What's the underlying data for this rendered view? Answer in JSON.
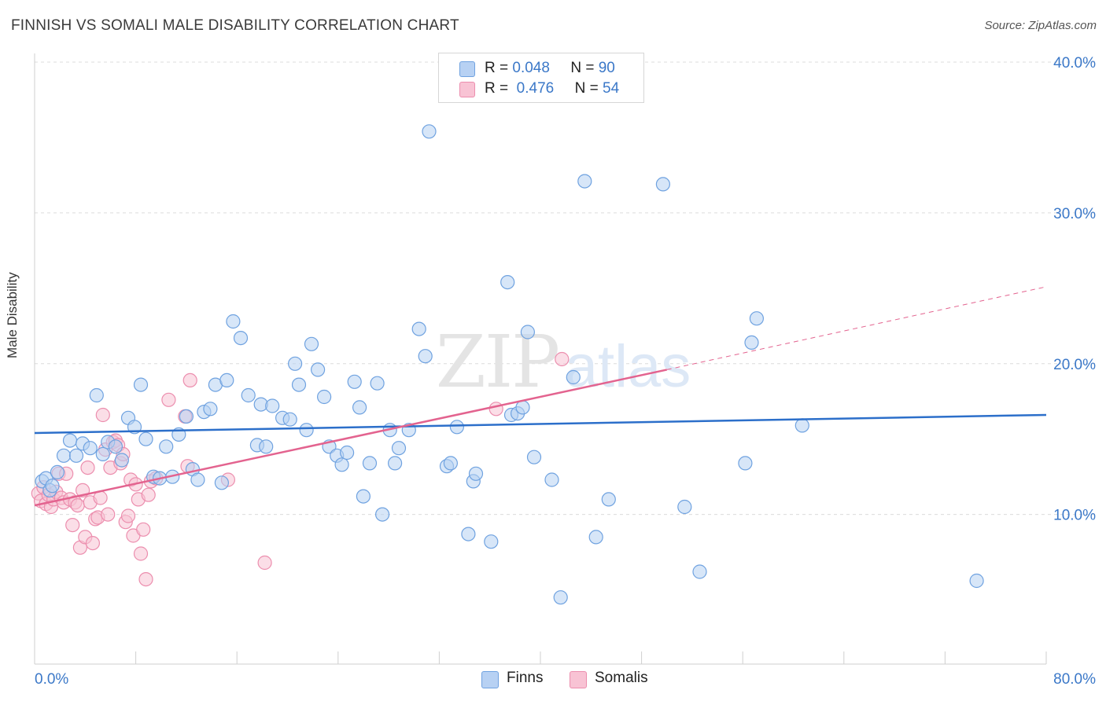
{
  "title": "FINNISH VS SOMALI MALE DISABILITY CORRELATION CHART",
  "source": "Source: ZipAtlas.com",
  "watermark": {
    "zip": "ZIP",
    "atlas": "atlas"
  },
  "legend": {
    "rows": [
      {
        "r_label": "R =",
        "r_value": "0.048",
        "n_label": "N =",
        "n_value": "90",
        "color": "#a9c8f0"
      },
      {
        "r_label": "R =",
        "r_value": "0.476",
        "n_label": "N =",
        "n_value": "54",
        "color": "#f6b7cb"
      }
    ]
  },
  "bottom_legend": [
    {
      "label": "Finns",
      "color": "#a9c8f0"
    },
    {
      "label": "Somalis",
      "color": "#f6b7cb"
    }
  ],
  "chart_data": {
    "type": "scatter",
    "title": "FINNISH VS SOMALI MALE DISABILITY CORRELATION CHART",
    "xlabel": "",
    "ylabel": "Male Disability",
    "xlim": [
      0,
      80
    ],
    "ylim": [
      0,
      40
    ],
    "x_tick_labels": [
      "0.0%",
      "80.0%"
    ],
    "y_ticks": [
      10,
      20,
      30,
      40
    ],
    "y_tick_labels": [
      "10.0%",
      "20.0%",
      "30.0%",
      "40.0%"
    ],
    "grid": "horizontal dashed",
    "legend_position": "top-center",
    "series": [
      {
        "name": "Finns",
        "color": "#6fa2e0",
        "fill": "#b7d1f3",
        "trend": {
          "x": [
            0,
            80
          ],
          "y": [
            15.4,
            16.6
          ],
          "color": "#2c6fca"
        },
        "points": [
          [
            0.6,
            12.2
          ],
          [
            0.9,
            12.4
          ],
          [
            1.2,
            11.6
          ],
          [
            1.4,
            11.9
          ],
          [
            1.8,
            12.8
          ],
          [
            2.3,
            13.9
          ],
          [
            2.8,
            14.9
          ],
          [
            3.3,
            13.9
          ],
          [
            3.8,
            14.7
          ],
          [
            4.4,
            14.4
          ],
          [
            4.9,
            17.9
          ],
          [
            5.4,
            14.0
          ],
          [
            5.8,
            14.8
          ],
          [
            6.4,
            14.5
          ],
          [
            6.9,
            13.6
          ],
          [
            7.4,
            16.4
          ],
          [
            7.9,
            15.8
          ],
          [
            8.4,
            18.6
          ],
          [
            8.8,
            15.0
          ],
          [
            9.4,
            12.5
          ],
          [
            9.9,
            12.4
          ],
          [
            10.4,
            14.5
          ],
          [
            10.9,
            12.5
          ],
          [
            11.4,
            15.3
          ],
          [
            12.0,
            16.5
          ],
          [
            12.5,
            13.0
          ],
          [
            12.9,
            12.3
          ],
          [
            13.4,
            16.8
          ],
          [
            13.9,
            17.0
          ],
          [
            14.3,
            18.6
          ],
          [
            14.8,
            12.1
          ],
          [
            15.2,
            18.9
          ],
          [
            15.7,
            22.8
          ],
          [
            16.3,
            21.7
          ],
          [
            16.9,
            17.9
          ],
          [
            17.6,
            14.6
          ],
          [
            17.9,
            17.3
          ],
          [
            18.3,
            14.5
          ],
          [
            18.8,
            17.2
          ],
          [
            19.6,
            16.4
          ],
          [
            20.2,
            16.3
          ],
          [
            20.6,
            20.0
          ],
          [
            20.9,
            18.6
          ],
          [
            21.5,
            15.6
          ],
          [
            21.9,
            21.3
          ],
          [
            22.4,
            19.6
          ],
          [
            22.9,
            17.8
          ],
          [
            23.3,
            14.5
          ],
          [
            23.9,
            13.9
          ],
          [
            24.3,
            13.3
          ],
          [
            24.7,
            14.1
          ],
          [
            25.3,
            18.8
          ],
          [
            25.7,
            17.1
          ],
          [
            26.0,
            11.2
          ],
          [
            26.5,
            13.4
          ],
          [
            27.1,
            18.7
          ],
          [
            27.5,
            10.0
          ],
          [
            28.1,
            15.6
          ],
          [
            28.5,
            13.4
          ],
          [
            28.8,
            14.4
          ],
          [
            29.6,
            15.6
          ],
          [
            30.4,
            22.3
          ],
          [
            30.9,
            20.5
          ],
          [
            31.2,
            35.4
          ],
          [
            32.6,
            13.2
          ],
          [
            32.9,
            13.4
          ],
          [
            33.4,
            15.8
          ],
          [
            34.3,
            8.7
          ],
          [
            34.7,
            12.2
          ],
          [
            34.9,
            12.7
          ],
          [
            36.1,
            8.2
          ],
          [
            37.4,
            25.4
          ],
          [
            37.7,
            16.6
          ],
          [
            38.2,
            16.7
          ],
          [
            38.6,
            17.1
          ],
          [
            39.0,
            22.1
          ],
          [
            39.5,
            13.8
          ],
          [
            40.9,
            12.3
          ],
          [
            41.6,
            4.5
          ],
          [
            42.6,
            19.1
          ],
          [
            43.5,
            32.1
          ],
          [
            44.4,
            8.5
          ],
          [
            45.4,
            11.0
          ],
          [
            49.7,
            31.9
          ],
          [
            51.4,
            10.5
          ],
          [
            52.6,
            6.2
          ],
          [
            56.2,
            13.4
          ],
          [
            56.7,
            21.4
          ],
          [
            57.1,
            23.0
          ],
          [
            60.7,
            15.9
          ],
          [
            74.5,
            5.6
          ]
        ]
      },
      {
        "name": "Somalis",
        "color": "#ec8eae",
        "fill": "#f8c3d4",
        "trend": {
          "x": [
            0,
            50
          ],
          "y": [
            10.6,
            19.6
          ],
          "color": "#e3638f",
          "extended_to": [
            80,
            25.1
          ]
        },
        "points": [
          [
            0.3,
            11.4
          ],
          [
            0.5,
            10.9
          ],
          [
            0.7,
            11.8
          ],
          [
            0.9,
            10.7
          ],
          [
            1.1,
            11.3
          ],
          [
            1.3,
            10.5
          ],
          [
            1.5,
            11.0
          ],
          [
            1.7,
            11.5
          ],
          [
            1.9,
            12.7
          ],
          [
            2.1,
            11.1
          ],
          [
            2.3,
            10.8
          ],
          [
            2.5,
            12.7
          ],
          [
            2.8,
            11.0
          ],
          [
            3.0,
            9.3
          ],
          [
            3.2,
            10.8
          ],
          [
            3.4,
            10.6
          ],
          [
            3.6,
            7.8
          ],
          [
            3.8,
            11.6
          ],
          [
            4.0,
            8.5
          ],
          [
            4.2,
            13.1
          ],
          [
            4.4,
            10.8
          ],
          [
            4.6,
            8.1
          ],
          [
            4.8,
            9.7
          ],
          [
            5.0,
            9.8
          ],
          [
            5.2,
            11.1
          ],
          [
            5.4,
            16.6
          ],
          [
            5.6,
            14.3
          ],
          [
            5.8,
            10.0
          ],
          [
            6.0,
            13.1
          ],
          [
            6.2,
            14.8
          ],
          [
            6.4,
            14.9
          ],
          [
            6.6,
            14.6
          ],
          [
            6.8,
            13.4
          ],
          [
            7.0,
            14.0
          ],
          [
            7.2,
            9.5
          ],
          [
            7.4,
            9.9
          ],
          [
            7.6,
            12.3
          ],
          [
            7.8,
            8.6
          ],
          [
            8.0,
            12.0
          ],
          [
            8.2,
            11.0
          ],
          [
            8.4,
            7.4
          ],
          [
            8.6,
            9.0
          ],
          [
            8.8,
            5.7
          ],
          [
            9.0,
            11.3
          ],
          [
            9.2,
            12.2
          ],
          [
            9.6,
            12.4
          ],
          [
            10.6,
            17.6
          ],
          [
            11.9,
            16.5
          ],
          [
            12.3,
            18.9
          ],
          [
            12.1,
            13.2
          ],
          [
            15.3,
            12.3
          ],
          [
            18.2,
            6.8
          ],
          [
            36.5,
            17.0
          ],
          [
            41.7,
            20.3
          ]
        ]
      }
    ]
  }
}
